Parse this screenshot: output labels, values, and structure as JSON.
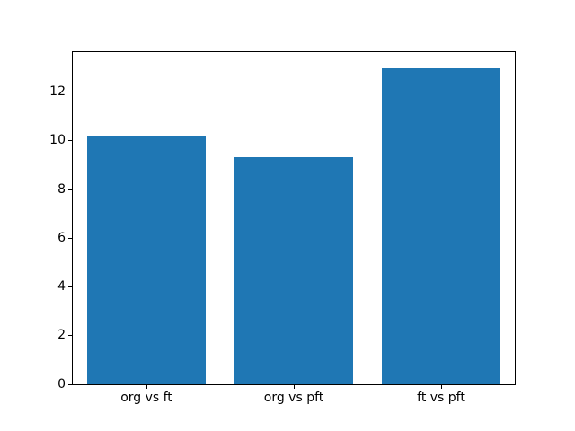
{
  "chart_data": {
    "type": "bar",
    "title": "",
    "xlabel": "",
    "ylabel": "",
    "categories": [
      "org vs ft",
      "org vs pft",
      "ft vs pft"
    ],
    "values": [
      10.2,
      9.35,
      13.0
    ],
    "yticks": [
      0,
      2,
      4,
      6,
      8,
      10,
      12
    ],
    "ylim": [
      0,
      13.65
    ],
    "bar_width_fraction": 0.8,
    "bar_color": "#1f77b4",
    "axis_color": "#000000",
    "background_color": "#ffffff",
    "grid": false,
    "legend": false
  }
}
